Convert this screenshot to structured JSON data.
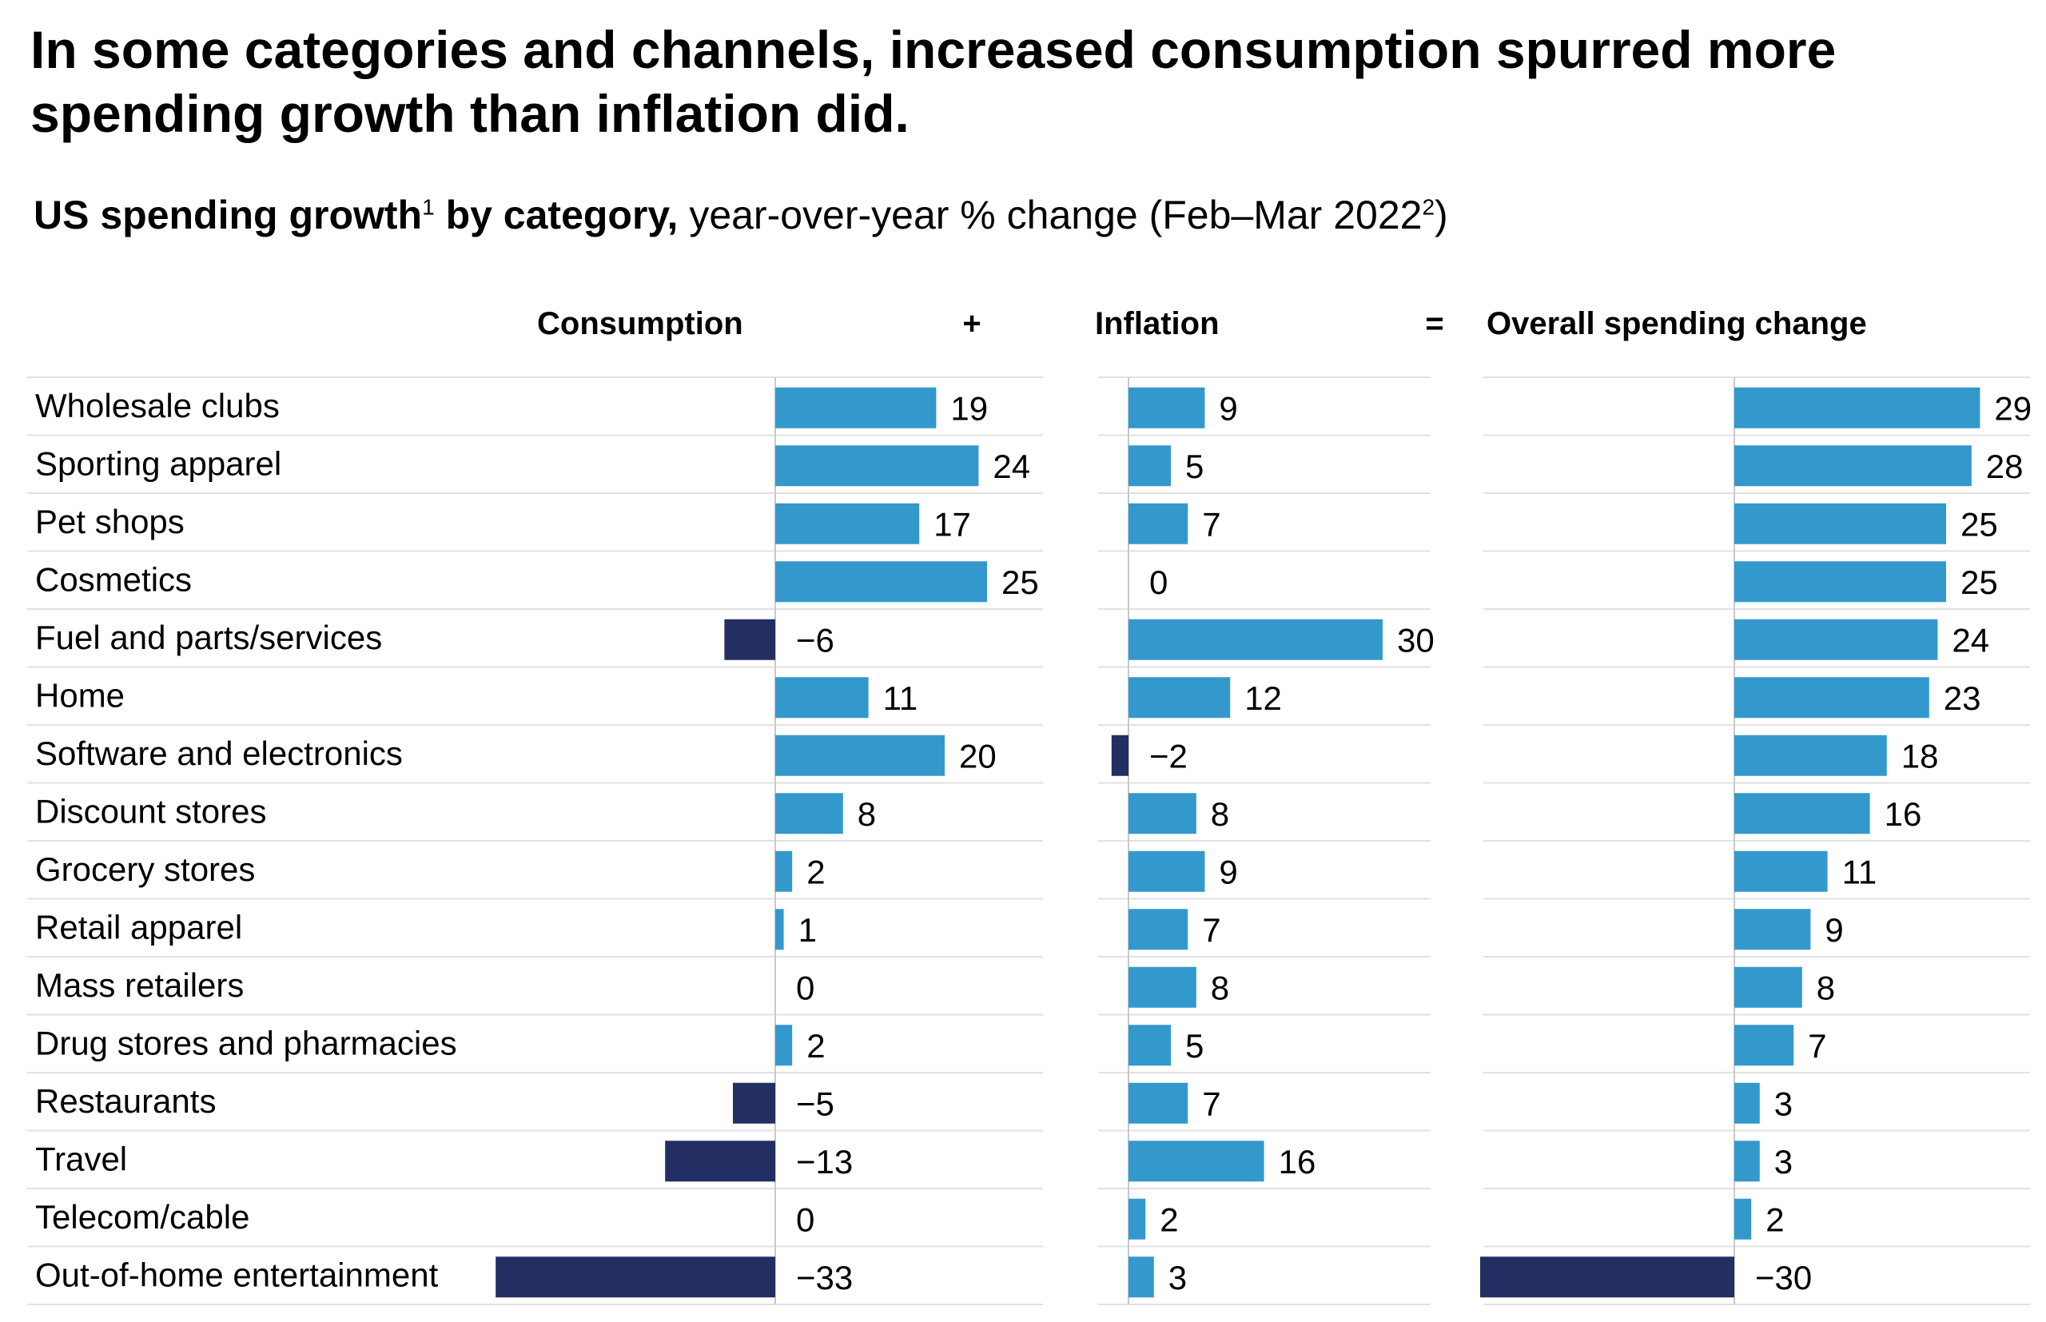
{
  "title": "In some categories and channels, increased consumption spurred more spending growth than inflation did.",
  "subtitle": {
    "bold": "US spending growth",
    "sup1": "1",
    "bold2": " by category,",
    "normal": " year-over-year % change (Feb–Mar 2022",
    "sup2": "2",
    "close": ")"
  },
  "colors": {
    "positive": "#3399cc",
    "negative": "#232e63",
    "grid": "#e2e2e2",
    "axis": "#c8c8c8"
  },
  "chart_data": {
    "type": "bar",
    "orientation": "horizontal",
    "operators": [
      "+",
      "="
    ],
    "categories": [
      "Wholesale clubs",
      "Sporting apparel",
      "Pet shops",
      "Cosmetics",
      "Fuel and parts/services",
      "Home",
      "Software and electronics",
      "Discount stores",
      "Grocery stores",
      "Retail apparel",
      "Mass retailers",
      "Drug stores and pharmacies",
      "Restaurants",
      "Travel",
      "Telecom/cable",
      "Out-of-home entertainment"
    ],
    "series": [
      {
        "name": "Consumption",
        "values": [
          19,
          24,
          17,
          25,
          -6,
          11,
          20,
          8,
          2,
          1,
          0,
          2,
          -5,
          -13,
          0,
          -33
        ]
      },
      {
        "name": "Inflation",
        "values": [
          9,
          5,
          7,
          0,
          30,
          12,
          -2,
          8,
          9,
          7,
          8,
          5,
          7,
          16,
          2,
          3
        ]
      },
      {
        "name": "Overall spending change",
        "values": [
          29,
          28,
          25,
          25,
          24,
          23,
          18,
          16,
          11,
          9,
          8,
          7,
          3,
          3,
          2,
          -30
        ]
      }
    ]
  }
}
